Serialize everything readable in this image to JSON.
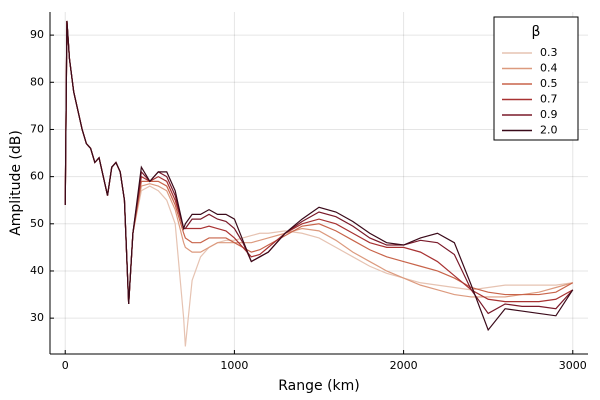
{
  "chart_data": {
    "type": "line",
    "xlabel": "Range (km)",
    "ylabel": "Amplitude (dB)",
    "legend_title": "β",
    "legend_position": "top-right",
    "grid": true,
    "xlim": [
      -90,
      3090
    ],
    "xticks": [
      0,
      1000,
      2000,
      3000
    ],
    "ylim": [
      22.4,
      94.9
    ],
    "yticks": [
      30,
      40,
      50,
      60,
      70,
      80,
      90
    ],
    "x": [
      0,
      10,
      25,
      50,
      75,
      100,
      125,
      150,
      175,
      200,
      225,
      250,
      275,
      300,
      325,
      350,
      375,
      400,
      450,
      500,
      550,
      600,
      650,
      700,
      710,
      750,
      800,
      850,
      900,
      950,
      1000,
      1050,
      1100,
      1150,
      1200,
      1300,
      1400,
      1500,
      1600,
      1700,
      1800,
      1900,
      2000,
      2100,
      2200,
      2300,
      2400,
      2500,
      2600,
      2700,
      2800,
      2900,
      3000
    ],
    "series": [
      {
        "name": "0.3",
        "color": "#e6c3b2",
        "values": [
          54,
          93,
          85,
          78,
          74,
          70,
          67,
          66,
          63,
          64,
          60,
          56,
          62,
          63,
          61,
          55,
          33,
          48,
          57,
          58,
          57,
          55,
          50,
          30,
          24,
          38,
          43,
          45,
          46,
          46.5,
          46.5,
          47,
          47.5,
          48,
          48,
          48.5,
          48,
          47,
          45,
          43,
          41,
          39.5,
          38.5,
          37.5,
          37,
          36.5,
          36,
          36.5,
          37,
          37,
          37,
          37,
          37.5
        ]
      },
      {
        "name": "0.4",
        "color": "#dc9a7e",
        "values": [
          54,
          93,
          85,
          78,
          74,
          70,
          67,
          66,
          63,
          64,
          60,
          56,
          62,
          63,
          61,
          55,
          33,
          48,
          58,
          58.5,
          58,
          57,
          53,
          46,
          45,
          44,
          44,
          45,
          46,
          46,
          46,
          46,
          46,
          46.5,
          47,
          48,
          49,
          48.5,
          46.5,
          44,
          42,
          40,
          38.5,
          37,
          36,
          35,
          34.5,
          34.5,
          34.5,
          35,
          35.5,
          36.5,
          37.5
        ]
      },
      {
        "name": "0.5",
        "color": "#c8644a",
        "values": [
          54,
          93,
          85,
          78,
          74,
          70,
          67,
          66,
          63,
          64,
          60,
          56,
          62,
          63,
          61,
          55,
          33,
          48,
          59,
          59,
          59,
          58,
          54,
          48,
          47,
          46,
          46,
          47,
          47,
          47,
          46,
          45,
          44,
          44.5,
          45.5,
          47.5,
          49.5,
          50,
          48.5,
          46.5,
          44.5,
          43,
          42,
          41,
          40,
          38.5,
          36.5,
          35.5,
          35,
          35,
          35,
          35.5,
          37.5
        ]
      },
      {
        "name": "0.7",
        "color": "#a83232",
        "values": [
          54,
          93,
          85,
          78,
          74,
          70,
          67,
          66,
          63,
          64,
          60,
          56,
          62,
          63,
          61,
          55,
          33,
          48,
          60,
          59,
          60,
          59,
          55,
          49,
          49,
          49,
          49,
          49.5,
          49,
          48.5,
          47,
          45,
          43,
          43.5,
          45,
          48,
          50,
          51,
          50,
          48,
          46,
          45,
          45,
          44,
          42,
          39,
          36,
          34,
          33.5,
          33.5,
          33.5,
          34,
          36
        ]
      },
      {
        "name": "0.9",
        "color": "#7a1a2a",
        "values": [
          54,
          93,
          85,
          78,
          74,
          70,
          67,
          66,
          63,
          64,
          60,
          56,
          62,
          63,
          61,
          55,
          33,
          48,
          61,
          59,
          61,
          60,
          56,
          49,
          49,
          51,
          51,
          52,
          51,
          50.5,
          49,
          46,
          42,
          43,
          44,
          48,
          50.5,
          52.5,
          51.5,
          49.5,
          47,
          45.5,
          45.5,
          46.5,
          46,
          43.5,
          36,
          31,
          33,
          32.5,
          32.5,
          32,
          36
        ]
      },
      {
        "name": "2.0",
        "color": "#3a0a1a",
        "values": [
          54,
          93,
          85,
          78,
          74,
          70,
          67,
          66,
          63,
          64,
          60,
          56,
          62,
          63,
          61,
          55,
          33,
          48,
          62,
          59,
          61,
          61,
          57,
          49,
          50,
          52,
          52,
          53,
          52,
          52,
          51,
          46.5,
          42,
          43,
          44,
          48,
          51,
          53.5,
          52.5,
          50.5,
          48,
          46,
          45.5,
          47,
          48,
          46,
          37,
          27.5,
          32,
          31.5,
          31,
          30.5,
          36
        ]
      }
    ]
  }
}
